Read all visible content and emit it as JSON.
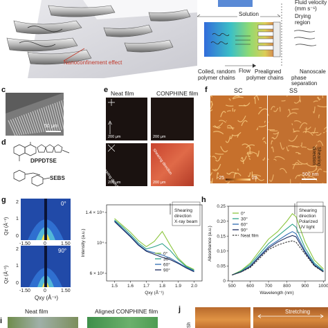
{
  "panel_a": {
    "caption": "Nanoconfinement effect"
  },
  "panel_b": {
    "flow_velocity": "Fluid velocity",
    "flow_units": "(mm s⁻¹)",
    "drying": "Drying",
    "region": "region",
    "solution": "Solution",
    "flow": "Flow",
    "stage1_a": "Coiled, random",
    "stage1_b": "polymer chains",
    "stage2_a": "Prealigned",
    "stage2_b": "polymer chains",
    "stage3_a": "Nanoscale",
    "stage3_b": "phase separation"
  },
  "panel_c": {
    "label": "c",
    "scale": "50 μm"
  },
  "panel_d": {
    "label": "d",
    "mol1": "DPPDTSE",
    "mol2": "SEBS"
  },
  "panel_e": {
    "label": "e",
    "col1": "Neat film",
    "col2": "CONPHINE film",
    "scale": "200 μm",
    "shear_note": "Shearing direction"
  },
  "panel_f": {
    "label": "f",
    "col1": "SC",
    "col2": "SS",
    "side_note": "Shearing direction",
    "scale": "500 nm",
    "angle_left": "-25",
    "angle_right": "25"
  },
  "panel_g": {
    "label": "g",
    "top_angle": "0°",
    "bottom_angle": "90°",
    "ylabel": "Qz (Å⁻¹)",
    "xlabel": "Qxy (Å⁻¹)",
    "xticks": [
      "-1.50",
      "0",
      "1.50"
    ],
    "yticks_top": [
      "2",
      "1",
      "0"
    ],
    "yticks_bottom": [
      "2",
      "1",
      "0"
    ]
  },
  "panel_h": {
    "label": "h"
  },
  "panel_i": {
    "label": "i",
    "col1": "Neat film",
    "col2": "Aligned CONPHINE film"
  },
  "panel_j": {
    "label": "j",
    "col2": "Stretching",
    "side": "Sh"
  },
  "chart_data": [
    {
      "type": "line",
      "title": "",
      "xlabel": "Qxy (Å⁻¹)",
      "ylabel": "Intensity (a.u.)",
      "xlim": [
        1.45,
        2.05
      ],
      "ylim": [
        5000,
        15000
      ],
      "xticks": [
        "1.5",
        "1.6",
        "1.7",
        "1.8",
        "1.9",
        "2.0"
      ],
      "yticks": [
        "6 × 10³",
        "10⁴",
        "1.4 × 10⁴"
      ],
      "annotation": [
        "Shearing",
        "direction",
        "X-ray beam"
      ],
      "x": [
        1.5,
        1.55,
        1.6,
        1.65,
        1.7,
        1.75,
        1.8,
        1.85,
        1.9,
        1.95,
        2.0
      ],
      "series": [
        {
          "name": "0°",
          "color": "#8cc63f",
          "values": [
            13200,
            12300,
            11400,
            10300,
            9500,
            10200,
            11500,
            9700,
            8000,
            7000,
            6500
          ]
        },
        {
          "name": "30°",
          "color": "#2ca089",
          "values": [
            13000,
            12100,
            11100,
            10000,
            9200,
            9500,
            9900,
            9000,
            7800,
            6900,
            6400
          ]
        },
        {
          "name": "60°",
          "color": "#2c6ab0",
          "values": [
            12900,
            11900,
            10900,
            9800,
            9000,
            8700,
            8400,
            8000,
            7400,
            6800,
            6300
          ]
        },
        {
          "name": "90°",
          "color": "#1b2a5e",
          "values": [
            12800,
            11800,
            10800,
            9700,
            8900,
            8500,
            8100,
            7800,
            7300,
            6700,
            6200
          ]
        }
      ]
    },
    {
      "type": "line",
      "title": "",
      "xlabel": "Wavelength (nm)",
      "ylabel": "Absorbance (a.u.)",
      "xlim": [
        480,
        1010
      ],
      "ylim": [
        0,
        0.25
      ],
      "xticks": [
        "500",
        "600",
        "700",
        "800",
        "900",
        "1000"
      ],
      "yticks": [
        "0",
        "0.05",
        "0.10",
        "0.15",
        "0.20",
        "0.25"
      ],
      "annotation": [
        "Shearing",
        "direction",
        "Polarized",
        "UV light"
      ],
      "x": [
        500,
        550,
        600,
        650,
        700,
        750,
        800,
        830,
        850,
        900,
        950,
        1000
      ],
      "series": [
        {
          "name": "0°",
          "color": "#8cc63f",
          "values": [
            0.02,
            0.035,
            0.06,
            0.1,
            0.14,
            0.165,
            0.2,
            0.225,
            0.215,
            0.13,
            0.07,
            0.04
          ]
        },
        {
          "name": "30°",
          "color": "#2ca089",
          "values": [
            0.02,
            0.033,
            0.055,
            0.09,
            0.125,
            0.15,
            0.175,
            0.19,
            0.18,
            0.11,
            0.06,
            0.035
          ]
        },
        {
          "name": "60°",
          "color": "#2c6ab0",
          "values": [
            0.02,
            0.031,
            0.05,
            0.083,
            0.115,
            0.135,
            0.155,
            0.165,
            0.158,
            0.1,
            0.055,
            0.032
          ]
        },
        {
          "name": "90°",
          "color": "#1b2a5e",
          "values": [
            0.02,
            0.03,
            0.048,
            0.08,
            0.11,
            0.13,
            0.145,
            0.152,
            0.148,
            0.095,
            0.052,
            0.03
          ]
        },
        {
          "name": "Neat film",
          "color": "#333333",
          "dashed": true,
          "values": [
            0.02,
            0.03,
            0.045,
            0.075,
            0.105,
            0.12,
            0.13,
            0.134,
            0.13,
            0.09,
            0.05,
            0.03
          ]
        }
      ]
    }
  ]
}
